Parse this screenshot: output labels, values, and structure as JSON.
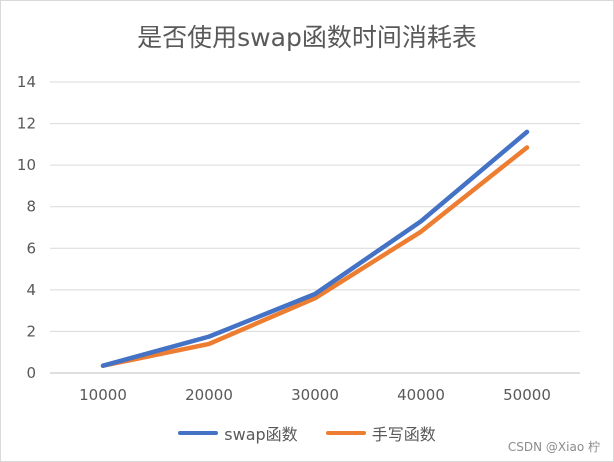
{
  "chart_data": {
    "type": "line",
    "title": "是否使用swap函数时间消耗表",
    "categories": [
      "10000",
      "20000",
      "30000",
      "40000",
      "50000"
    ],
    "series": [
      {
        "name": "swap函数",
        "color": "#4472c4",
        "values": [
          0.35,
          1.75,
          3.8,
          7.3,
          11.6
        ]
      },
      {
        "name": "手写函数",
        "color": "#ed7d31",
        "values": [
          0.35,
          1.4,
          3.6,
          6.8,
          10.85
        ]
      }
    ],
    "yticks": [
      "0",
      "2",
      "4",
      "6",
      "8",
      "10",
      "12",
      "14"
    ],
    "ylim": [
      0,
      14
    ],
    "grid": true,
    "legend_position": "bottom"
  },
  "watermark": "CSDN @Xiao 柠"
}
